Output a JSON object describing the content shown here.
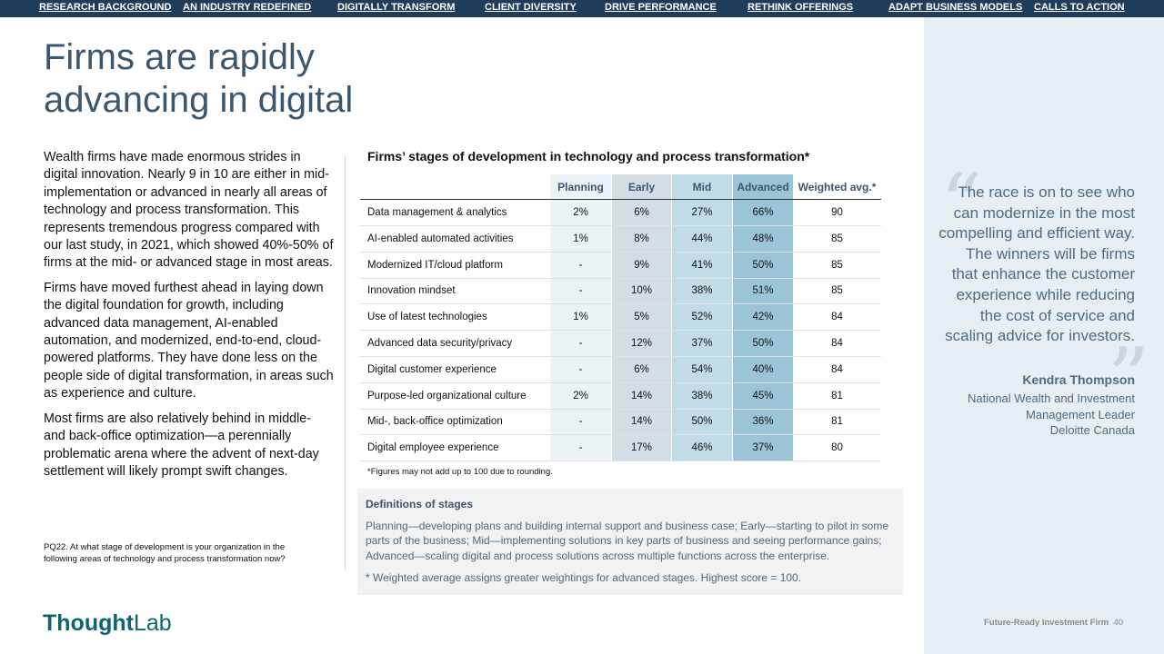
{
  "nav": [
    {
      "label": "RESEARCH BACKGROUND"
    },
    {
      "label": "AN INDUSTRY REDEFINED"
    },
    {
      "label": "DIGITALLY TRANSFORM"
    },
    {
      "label": "CLIENT DIVERSITY"
    },
    {
      "label": "DRIVE PERFORMANCE"
    },
    {
      "label": "RETHINK OFFERINGS"
    },
    {
      "label": "ADAPT BUSINESS MODELS"
    },
    {
      "label": "CALLS TO ACTION"
    }
  ],
  "title": "Firms are rapidly advancing in digital",
  "intro": {
    "p1": "Wealth firms have made enormous strides in digital innovation. Nearly 9 in 10 are either in mid-implementation or advanced in nearly all areas of technology and process transformation. This represents tremendous progress compared with our last study, in 2021, which showed 40%-50% of firms at the mid- or advanced stage in most areas.",
    "p2": "Firms have moved furthest ahead in laying down the digital foundation for growth, including advanced data management, AI-enabled automation, and modernized, end-to-end, cloud-powered platforms. They have done less on the people side of digital transformation, in areas such as experience and culture.",
    "p3": "Most firms are also relatively behind in middle- and back-office optimization—a perennially problematic arena where the advent of next-day settlement will likely prompt swift changes."
  },
  "survey_question": "PQ22. At what stage of development is your organization in the following areas of technology and process transformation now?",
  "table": {
    "title": "Firms’ stages of development in technology and process transformation*",
    "headers": [
      "Planning",
      "Early",
      "Mid",
      "Advanced",
      "Weighted avg.*"
    ],
    "column_colors": [
      "#ebf3f7",
      "#d3dde6",
      "#c2dce7",
      "#9bc5d7"
    ],
    "rows": [
      {
        "label": "Data management & analytics",
        "values": [
          "2%",
          "6%",
          "27%",
          "66%",
          "90"
        ]
      },
      {
        "label": "AI-enabled automated activities",
        "values": [
          "1%",
          "8%",
          "44%",
          "48%",
          "85"
        ]
      },
      {
        "label": "Modernized IT/cloud platform",
        "values": [
          "-",
          "9%",
          "41%",
          "50%",
          "85"
        ]
      },
      {
        "label": "Innovation mindset",
        "values": [
          "-",
          "10%",
          "38%",
          "51%",
          "85"
        ]
      },
      {
        "label": "Use of latest technologies",
        "values": [
          "1%",
          "5%",
          "52%",
          "42%",
          "84"
        ]
      },
      {
        "label": "Advanced data security/privacy",
        "values": [
          "-",
          "12%",
          "37%",
          "50%",
          "84"
        ]
      },
      {
        "label": "Digital customer experience",
        "values": [
          "-",
          "6%",
          "54%",
          "40%",
          "84"
        ]
      },
      {
        "label": "Purpose-led organizational culture",
        "values": [
          "2%",
          "14%",
          "38%",
          "45%",
          "81"
        ]
      },
      {
        "label": "Mid-, back-office optimization",
        "values": [
          "-",
          "14%",
          "50%",
          "36%",
          "81"
        ]
      },
      {
        "label": "Digital employee experience",
        "values": [
          "-",
          "17%",
          "46%",
          "37%",
          "80"
        ]
      }
    ],
    "note": "*Figures may not add up to 100 due to rounding."
  },
  "definitions": {
    "heading": "Definitions of stages",
    "text": "Planning—developing plans and building internal support and business case; Early—starting to pilot in some parts of the business; Mid—implementing solutions in key parts of business and seeing performance gains; Advanced—scaling digital and process solutions across multiple functions across the enterprise.",
    "weighted": "* Weighted average assigns greater weightings for advanced stages. Highest score = 100."
  },
  "quote": {
    "text": "The race is on to see who can modernize in the most compelling and efficient way. The winners will be firms that enhance the customer experience while reducing the cost of service and scaling advice for investors.",
    "name": "Kendra Thompson",
    "role": "National Wealth and Investment Management Leader",
    "org": "Deloitte Canada"
  },
  "logo": {
    "bold": "Thought",
    "regular": "Lab"
  },
  "footer": {
    "title": "Future-Ready Investment Firm",
    "page": "40"
  },
  "colors": {
    "nav_bg": "#1f3d5a",
    "accent": "#3d5670",
    "side_panel": "#e7eff4",
    "logo": "#0e6470"
  }
}
